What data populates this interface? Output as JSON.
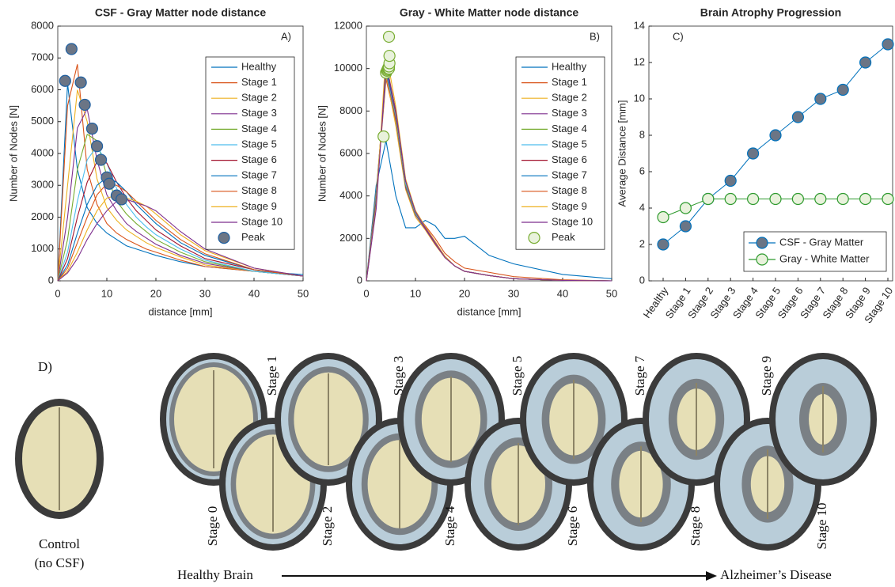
{
  "chart_data": [
    {
      "type": "line",
      "title": "CSF - Gray Matter node distance",
      "annotation": "A)",
      "xlabel": "distance [mm]",
      "ylabel": "Number of Nodes [N]",
      "x": [
        0,
        2,
        4,
        6,
        8,
        10,
        12,
        14,
        16,
        18,
        20,
        25,
        30,
        40,
        50
      ],
      "xlim": [
        0,
        50
      ],
      "xticks": [
        0,
        10,
        20,
        30,
        40,
        50
      ],
      "ylim": [
        0,
        8000
      ],
      "yticks": [
        0,
        1000,
        2000,
        3000,
        4000,
        5000,
        6000,
        7000,
        8000
      ],
      "series": [
        {
          "name": "Healthy",
          "color": "#0072BD",
          "values": [
            0,
            6200,
            3500,
            2300,
            1800,
            1500,
            1300,
            1100,
            1000,
            900,
            800,
            600,
            450,
            300,
            200
          ]
        },
        {
          "name": "Stage 1",
          "color": "#D95319",
          "values": [
            0,
            5500,
            6800,
            3500,
            2400,
            1800,
            1500,
            1300,
            1150,
            1000,
            900,
            650,
            450,
            300,
            150
          ]
        },
        {
          "name": "Stage 2",
          "color": "#EDB120",
          "values": [
            0,
            3000,
            6000,
            5000,
            3200,
            2300,
            1900,
            1600,
            1400,
            1200,
            1050,
            750,
            500,
            300,
            150
          ]
        },
        {
          "name": "Stage 3",
          "color": "#7E2F8E",
          "values": [
            0,
            2000,
            4800,
            5400,
            3800,
            2700,
            2200,
            1800,
            1550,
            1350,
            1150,
            800,
            550,
            300,
            150
          ]
        },
        {
          "name": "Stage 4",
          "color": "#77AC30",
          "values": [
            0,
            1300,
            3500,
            4600,
            4400,
            3300,
            2500,
            2100,
            1800,
            1550,
            1300,
            900,
            600,
            300,
            150
          ]
        },
        {
          "name": "Stage 5",
          "color": "#4DBEEE",
          "values": [
            0,
            900,
            2500,
            3800,
            4230,
            3700,
            2900,
            2400,
            2000,
            1700,
            1450,
            1000,
            650,
            300,
            150
          ]
        },
        {
          "name": "Stage 6",
          "color": "#A2142F",
          "values": [
            0,
            700,
            2000,
            3100,
            3750,
            3700,
            3100,
            2600,
            2200,
            1900,
            1600,
            1100,
            700,
            350,
            150
          ]
        },
        {
          "name": "Stage 7",
          "color": "#0072BD",
          "values": [
            0,
            500,
            1500,
            2400,
            3000,
            3250,
            3100,
            2800,
            2400,
            2100,
            1800,
            1200,
            800,
            350,
            150
          ]
        },
        {
          "name": "Stage 8",
          "color": "#D95319",
          "values": [
            0,
            400,
            1200,
            2000,
            2700,
            3050,
            3000,
            2800,
            2500,
            2200,
            1900,
            1300,
            850,
            350,
            150
          ]
        },
        {
          "name": "Stage 9",
          "color": "#EDB120",
          "values": [
            0,
            300,
            900,
            1600,
            2200,
            2600,
            2680,
            2600,
            2500,
            2350,
            2100,
            1450,
            950,
            400,
            150
          ]
        },
        {
          "name": "Stage 10",
          "color": "#7E2F8E",
          "values": [
            0,
            250,
            700,
            1300,
            1800,
            2200,
            2500,
            2560,
            2450,
            2350,
            2200,
            1550,
            1000,
            400,
            150
          ]
        }
      ],
      "peaks": {
        "name": "Peak",
        "fill": "#6b7585",
        "edge": "#1f5fa0",
        "x": [
          1.5,
          2.8,
          4.7,
          5.5,
          7,
          8,
          8.8,
          10,
          10.5,
          12,
          13
        ],
        "values": [
          6280,
          7280,
          6230,
          5530,
          4780,
          4230,
          3800,
          3250,
          3050,
          2680,
          2560
        ]
      }
    },
    {
      "type": "line",
      "title": "Gray - White Matter node distance",
      "annotation": "B)",
      "xlabel": "distance [mm]",
      "ylabel": "Number of Nodes [N]",
      "x": [
        0,
        2,
        4,
        6,
        8,
        10,
        12,
        14,
        16,
        18,
        20,
        25,
        30,
        40,
        50
      ],
      "xlim": [
        0,
        50
      ],
      "xticks": [
        0,
        10,
        20,
        30,
        40,
        50
      ],
      "ylim": [
        0,
        12000
      ],
      "yticks": [
        0,
        2000,
        4000,
        6000,
        8000,
        10000,
        12000
      ],
      "series": [
        {
          "name": "Healthy",
          "color": "#0072BD",
          "values": [
            0,
            4500,
            6600,
            4000,
            2500,
            2500,
            2850,
            2600,
            2000,
            2000,
            2100,
            1200,
            800,
            300,
            100
          ]
        },
        {
          "name": "Stage 1",
          "color": "#D95319",
          "values": [
            0,
            4000,
            9500,
            7500,
            4500,
            3200,
            2600,
            2000,
            1300,
            900,
            600,
            400,
            200,
            50,
            0
          ]
        },
        {
          "name": "Stage 2",
          "color": "#EDB120",
          "values": [
            0,
            4200,
            9700,
            7300,
            4300,
            3000,
            2400,
            1700,
            1100,
            700,
            450,
            250,
            100,
            20,
            0
          ]
        },
        {
          "name": "Stage 3",
          "color": "#7E2F8E",
          "values": [
            0,
            4100,
            9800,
            7600,
            4400,
            3100,
            2450,
            1750,
            1100,
            700,
            450,
            250,
            100,
            20,
            0
          ]
        },
        {
          "name": "Stage 4",
          "color": "#77AC30",
          "values": [
            0,
            4000,
            9900,
            7700,
            4500,
            3150,
            2500,
            1800,
            1150,
            700,
            450,
            250,
            100,
            20,
            0
          ]
        },
        {
          "name": "Stage 5",
          "color": "#4DBEEE",
          "values": [
            0,
            3900,
            9900,
            7800,
            4600,
            3200,
            2500,
            1800,
            1150,
            700,
            450,
            250,
            100,
            20,
            0
          ]
        },
        {
          "name": "Stage 6",
          "color": "#A2142F",
          "values": [
            0,
            3800,
            10000,
            7900,
            4700,
            3250,
            2500,
            1800,
            1150,
            700,
            450,
            250,
            100,
            20,
            0
          ]
        },
        {
          "name": "Stage 7",
          "color": "#0072BD",
          "values": [
            0,
            3700,
            10000,
            8000,
            4700,
            3300,
            2550,
            1850,
            1150,
            700,
            450,
            250,
            100,
            20,
            0
          ]
        },
        {
          "name": "Stage 8",
          "color": "#D95319",
          "values": [
            0,
            3600,
            10300,
            8000,
            4700,
            3300,
            2550,
            1850,
            1150,
            700,
            450,
            250,
            100,
            20,
            0
          ]
        },
        {
          "name": "Stage 9",
          "color": "#EDB120",
          "values": [
            0,
            3500,
            10800,
            8200,
            4800,
            3300,
            2550,
            1850,
            1150,
            700,
            450,
            250,
            100,
            20,
            0
          ]
        },
        {
          "name": "Stage 10",
          "color": "#7E2F8E",
          "values": [
            0,
            3400,
            10200,
            8000,
            4700,
            3250,
            2500,
            1800,
            1100,
            700,
            450,
            250,
            100,
            20,
            0
          ]
        }
      ],
      "peaks": {
        "name": "Peak",
        "fill": "#e9f2dc",
        "edge": "#77AC30",
        "x": [
          3.5,
          4.0,
          4.2,
          4.3,
          4.4,
          4.5,
          4.6,
          4.6,
          4.7,
          4.7,
          4.6
        ],
        "values": [
          6800,
          9800,
          9900,
          9950,
          10000,
          10050,
          10000,
          10100,
          10250,
          10600,
          11500
        ]
      }
    },
    {
      "type": "category-line",
      "title": "Brain Atrophy Progression",
      "annotation": "C)",
      "ylabel": "Average Distance [mm]",
      "categories": [
        "Healthy",
        "Stage 1",
        "Stage 2",
        "Stage 3",
        "Stage 4",
        "Stage 5",
        "Stage 6",
        "Stage 7",
        "Stage 8",
        "Stage 9",
        "Stage 10"
      ],
      "ylim": [
        0,
        14
      ],
      "yticks": [
        0,
        2,
        4,
        6,
        8,
        10,
        12,
        14
      ],
      "series": [
        {
          "name": "CSF - Gray Matter",
          "color": "#0072BD",
          "fill": "#6b7585",
          "values": [
            2,
            3,
            4.5,
            5.5,
            7,
            8,
            9,
            10,
            10.5,
            12,
            13
          ]
        },
        {
          "name": "Gray - White Matter",
          "color": "#2e9a2e",
          "fill": "#e9f2dc",
          "values": [
            3.5,
            4,
            4.5,
            4.5,
            4.5,
            4.5,
            4.5,
            4.5,
            4.5,
            4.5,
            4.5
          ]
        }
      ]
    }
  ],
  "panel_d": {
    "label": "D)",
    "control": "Control",
    "control_note": "(no CSF)",
    "stages": [
      "Stage 0",
      "Stage 1",
      "Stage 2",
      "Stage 3",
      "Stage 4",
      "Stage 5",
      "Stage 6",
      "Stage 7",
      "Stage 8",
      "Stage 9",
      "Stage 10"
    ],
    "arrow_start": "Healthy Brain",
    "arrow_end": "Alzheimer’s Disease"
  }
}
